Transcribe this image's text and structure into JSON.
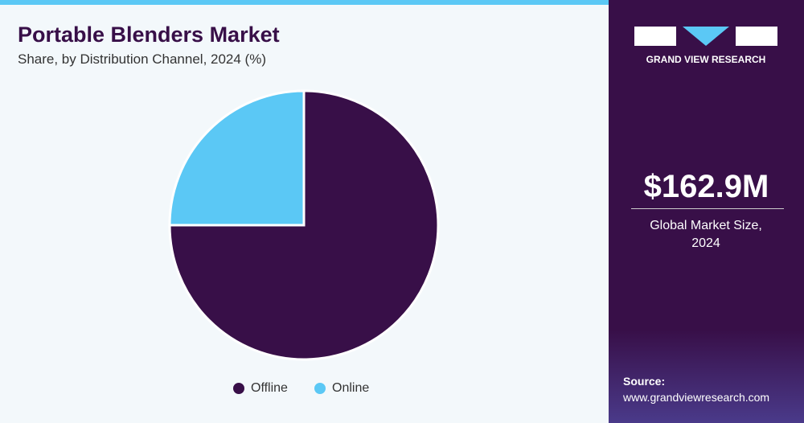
{
  "chart_data": {
    "type": "pie",
    "title": "Portable Blenders Market",
    "subtitle": "Share, by Distribution Channel, 2024 (%)",
    "categories": [
      "Offline",
      "Online"
    ],
    "values": [
      75,
      25
    ],
    "colors": [
      "#380f48",
      "#5bc8f5"
    ]
  },
  "side_panel": {
    "brand": "GRAND VIEW RESEARCH",
    "market_size": "$162.9M",
    "market_size_label": "Global Market Size, 2024",
    "source_label": "Source:",
    "source_url": "www.grandviewresearch.com"
  }
}
